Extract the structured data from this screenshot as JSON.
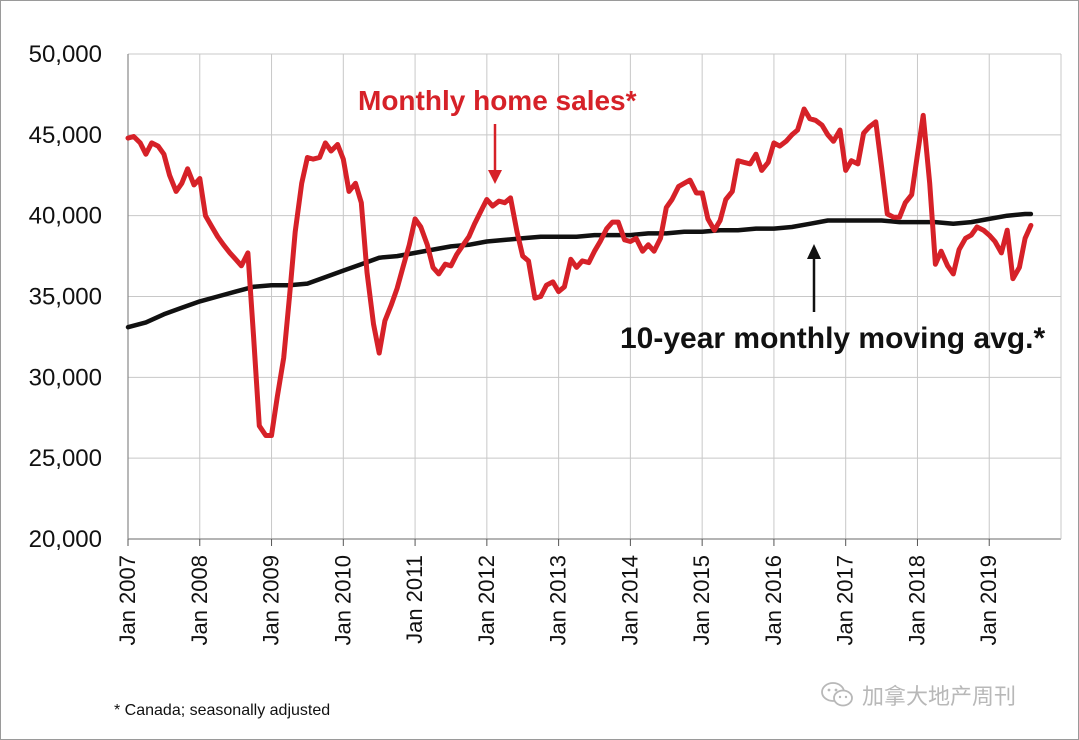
{
  "chart_data": {
    "type": "line",
    "ylim": [
      20000,
      50000
    ],
    "yticks": [
      20000,
      25000,
      30000,
      35000,
      40000,
      45000,
      50000
    ],
    "ytick_labels": [
      "20,000",
      "25,000",
      "30,000",
      "35,000",
      "40,000",
      "45,000",
      "50,000"
    ],
    "xlim": [
      2007.0,
      2020.0
    ],
    "xticks": [
      2007,
      2008,
      2009,
      2010,
      2011,
      2012,
      2013,
      2014,
      2015,
      2016,
      2017,
      2018,
      2019
    ],
    "xtick_labels": [
      "Jan 2007",
      "Jan 2008",
      "Jan 2009",
      "Jan 2010",
      "Jan 2011",
      "Jan 2012",
      "Jan 2013",
      "Jan 2014",
      "Jan 2015",
      "Jan 2016",
      "Jan 2017",
      "Jan 2018",
      "Jan 2019"
    ],
    "grid": true,
    "series": [
      {
        "name": "Monthly home sales*",
        "color": "#d62128",
        "points": [
          [
            2007.0,
            44800
          ],
          [
            2007.08,
            44900
          ],
          [
            2007.17,
            44500
          ],
          [
            2007.25,
            43800
          ],
          [
            2007.33,
            44500
          ],
          [
            2007.42,
            44300
          ],
          [
            2007.5,
            43800
          ],
          [
            2007.58,
            42500
          ],
          [
            2007.67,
            41500
          ],
          [
            2007.75,
            42000
          ],
          [
            2007.83,
            42900
          ],
          [
            2007.92,
            41900
          ],
          [
            2008.0,
            42300
          ],
          [
            2008.08,
            40000
          ],
          [
            2008.17,
            39300
          ],
          [
            2008.25,
            38700
          ],
          [
            2008.33,
            38200
          ],
          [
            2008.42,
            37700
          ],
          [
            2008.5,
            37300
          ],
          [
            2008.58,
            36900
          ],
          [
            2008.67,
            37700
          ],
          [
            2008.75,
            32500
          ],
          [
            2008.83,
            27000
          ],
          [
            2008.92,
            26400
          ],
          [
            2009.0,
            26400
          ],
          [
            2009.08,
            28800
          ],
          [
            2009.17,
            31200
          ],
          [
            2009.25,
            35000
          ],
          [
            2009.33,
            39000
          ],
          [
            2009.42,
            42000
          ],
          [
            2009.5,
            43600
          ],
          [
            2009.58,
            43500
          ],
          [
            2009.67,
            43600
          ],
          [
            2009.75,
            44500
          ],
          [
            2009.83,
            44000
          ],
          [
            2009.92,
            44400
          ],
          [
            2010.0,
            43500
          ],
          [
            2010.08,
            41500
          ],
          [
            2010.17,
            42000
          ],
          [
            2010.25,
            40800
          ],
          [
            2010.33,
            36500
          ],
          [
            2010.42,
            33300
          ],
          [
            2010.5,
            31500
          ],
          [
            2010.58,
            33500
          ],
          [
            2010.67,
            34500
          ],
          [
            2010.75,
            35500
          ],
          [
            2010.83,
            36800
          ],
          [
            2010.92,
            38200
          ],
          [
            2011.0,
            39800
          ],
          [
            2011.08,
            39300
          ],
          [
            2011.17,
            38200
          ],
          [
            2011.25,
            36800
          ],
          [
            2011.33,
            36400
          ],
          [
            2011.42,
            37000
          ],
          [
            2011.5,
            36900
          ],
          [
            2011.58,
            37600
          ],
          [
            2011.67,
            38200
          ],
          [
            2011.75,
            38700
          ],
          [
            2011.83,
            39500
          ],
          [
            2011.92,
            40300
          ],
          [
            2012.0,
            41000
          ],
          [
            2012.08,
            40600
          ],
          [
            2012.17,
            40900
          ],
          [
            2012.25,
            40800
          ],
          [
            2012.33,
            41100
          ],
          [
            2012.42,
            39000
          ],
          [
            2012.5,
            37500
          ],
          [
            2012.58,
            37200
          ],
          [
            2012.67,
            34900
          ],
          [
            2012.75,
            35000
          ],
          [
            2012.83,
            35700
          ],
          [
            2012.92,
            35900
          ],
          [
            2013.0,
            35300
          ],
          [
            2013.08,
            35600
          ],
          [
            2013.17,
            37300
          ],
          [
            2013.25,
            36800
          ],
          [
            2013.33,
            37200
          ],
          [
            2013.42,
            37100
          ],
          [
            2013.5,
            37800
          ],
          [
            2013.58,
            38400
          ],
          [
            2013.67,
            39200
          ],
          [
            2013.75,
            39600
          ],
          [
            2013.83,
            39600
          ],
          [
            2013.92,
            38500
          ],
          [
            2014.0,
            38400
          ],
          [
            2014.08,
            38600
          ],
          [
            2014.17,
            37800
          ],
          [
            2014.25,
            38200
          ],
          [
            2014.33,
            37800
          ],
          [
            2014.42,
            38600
          ],
          [
            2014.5,
            40500
          ],
          [
            2014.58,
            41000
          ],
          [
            2014.67,
            41800
          ],
          [
            2014.75,
            42000
          ],
          [
            2014.83,
            42200
          ],
          [
            2014.92,
            41400
          ],
          [
            2015.0,
            41400
          ],
          [
            2015.08,
            39800
          ],
          [
            2015.17,
            39100
          ],
          [
            2015.25,
            39700
          ],
          [
            2015.33,
            41000
          ],
          [
            2015.42,
            41500
          ],
          [
            2015.5,
            43400
          ],
          [
            2015.58,
            43300
          ],
          [
            2015.67,
            43200
          ],
          [
            2015.75,
            43800
          ],
          [
            2015.83,
            42800
          ],
          [
            2015.92,
            43300
          ],
          [
            2016.0,
            44500
          ],
          [
            2016.08,
            44300
          ],
          [
            2016.17,
            44600
          ],
          [
            2016.25,
            45000
          ],
          [
            2016.33,
            45300
          ],
          [
            2016.42,
            46600
          ],
          [
            2016.5,
            46000
          ],
          [
            2016.58,
            45900
          ],
          [
            2016.67,
            45600
          ],
          [
            2016.75,
            45000
          ],
          [
            2016.83,
            44600
          ],
          [
            2016.92,
            45300
          ],
          [
            2017.0,
            42800
          ],
          [
            2017.08,
            43400
          ],
          [
            2017.17,
            43200
          ],
          [
            2017.25,
            45100
          ],
          [
            2017.33,
            45500
          ],
          [
            2017.42,
            45800
          ],
          [
            2017.5,
            43000
          ],
          [
            2017.58,
            40100
          ],
          [
            2017.67,
            39900
          ],
          [
            2017.75,
            39900
          ],
          [
            2017.83,
            40800
          ],
          [
            2017.92,
            41300
          ],
          [
            2018.0,
            43800
          ],
          [
            2018.08,
            46200
          ],
          [
            2018.17,
            42000
          ],
          [
            2018.25,
            37000
          ],
          [
            2018.33,
            37800
          ],
          [
            2018.42,
            36900
          ],
          [
            2018.5,
            36400
          ],
          [
            2018.58,
            37900
          ],
          [
            2018.67,
            38600
          ],
          [
            2018.75,
            38800
          ],
          [
            2018.83,
            39300
          ],
          [
            2018.92,
            39100
          ],
          [
            2019.0,
            38800
          ],
          [
            2019.08,
            38400
          ],
          [
            2019.17,
            37700
          ],
          [
            2019.25,
            39100
          ],
          [
            2019.33,
            36100
          ],
          [
            2019.42,
            36800
          ],
          [
            2019.5,
            38600
          ],
          [
            2019.58,
            39400
          ]
        ]
      },
      {
        "name": "10-year monthly moving avg.*",
        "color": "#111111",
        "points": [
          [
            2007.0,
            33100
          ],
          [
            2007.25,
            33400
          ],
          [
            2007.5,
            33900
          ],
          [
            2007.75,
            34300
          ],
          [
            2008.0,
            34700
          ],
          [
            2008.25,
            35000
          ],
          [
            2008.5,
            35300
          ],
          [
            2008.75,
            35600
          ],
          [
            2009.0,
            35700
          ],
          [
            2009.25,
            35700
          ],
          [
            2009.5,
            35800
          ],
          [
            2009.75,
            36200
          ],
          [
            2010.0,
            36600
          ],
          [
            2010.25,
            37000
          ],
          [
            2010.5,
            37400
          ],
          [
            2010.75,
            37500
          ],
          [
            2011.0,
            37700
          ],
          [
            2011.25,
            37900
          ],
          [
            2011.5,
            38100
          ],
          [
            2011.75,
            38200
          ],
          [
            2012.0,
            38400
          ],
          [
            2012.25,
            38500
          ],
          [
            2012.5,
            38600
          ],
          [
            2012.75,
            38700
          ],
          [
            2013.0,
            38700
          ],
          [
            2013.25,
            38700
          ],
          [
            2013.5,
            38800
          ],
          [
            2013.75,
            38800
          ],
          [
            2014.0,
            38800
          ],
          [
            2014.25,
            38900
          ],
          [
            2014.5,
            38900
          ],
          [
            2014.75,
            39000
          ],
          [
            2015.0,
            39000
          ],
          [
            2015.25,
            39100
          ],
          [
            2015.5,
            39100
          ],
          [
            2015.75,
            39200
          ],
          [
            2016.0,
            39200
          ],
          [
            2016.25,
            39300
          ],
          [
            2016.5,
            39500
          ],
          [
            2016.75,
            39700
          ],
          [
            2017.0,
            39700
          ],
          [
            2017.25,
            39700
          ],
          [
            2017.5,
            39700
          ],
          [
            2017.75,
            39600
          ],
          [
            2018.0,
            39600
          ],
          [
            2018.25,
            39600
          ],
          [
            2018.5,
            39500
          ],
          [
            2018.75,
            39600
          ],
          [
            2019.0,
            39800
          ],
          [
            2019.25,
            40000
          ],
          [
            2019.5,
            40100
          ],
          [
            2019.58,
            40100
          ]
        ]
      }
    ],
    "annotations": {
      "sales_label": "Monthly home sales*",
      "avg_label": "10-year monthly moving avg.*"
    }
  },
  "footnote": "* Canada; seasonally adjusted",
  "watermark": {
    "text": "加拿大地产周刊",
    "icon": "wechat-icon"
  }
}
